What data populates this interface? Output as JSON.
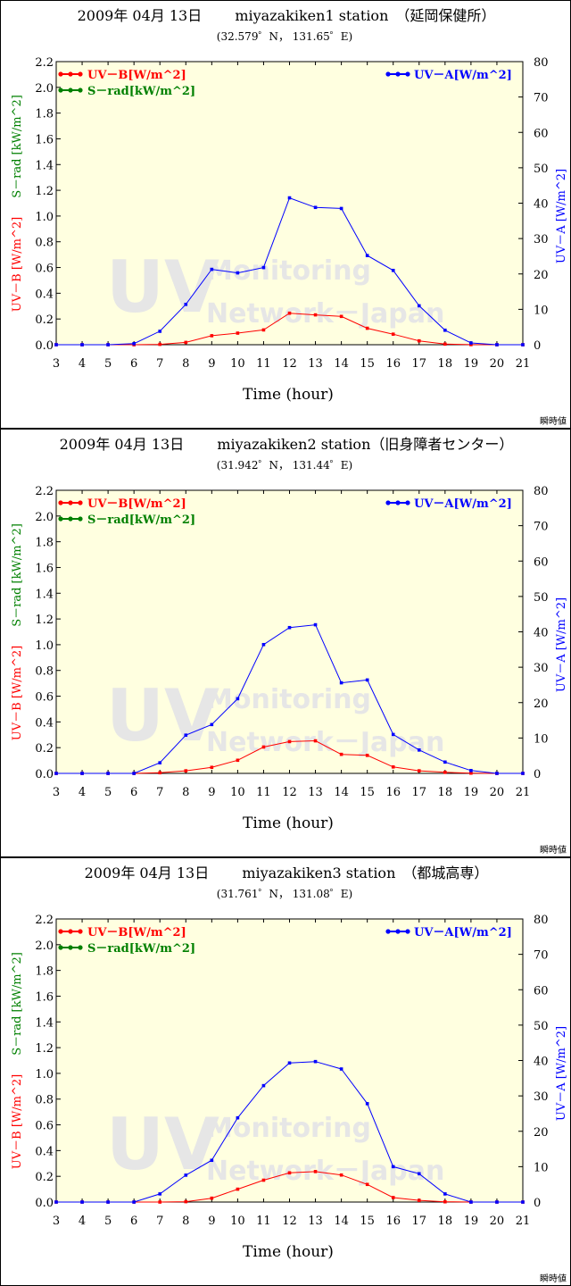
{
  "colors": {
    "uvb": "#ff0000",
    "srad": "#008000",
    "uva": "#0000ff",
    "plot_bg": "#ffffe0",
    "watermark": "#e6e6e6"
  },
  "watermark": {
    "line1": "UV",
    "line2": "Monitoring",
    "line3": "Network－Japan"
  },
  "chart_data": [
    {
      "type": "line",
      "title": "2009年 04月 13日　　 miyazakiken1 station　（延岡保健所）",
      "subtitle": "(32.579゜N，  131.65゜E)",
      "xlabel": "Time (hour)",
      "ylabel_left_1": "UV－B [W/m^2]",
      "ylabel_left_2": "S－rad [kW/m^2]",
      "ylabel_right": "UV－A [W/m^2]",
      "corner_label": "瞬時値",
      "xlim": [
        3,
        21
      ],
      "ylim_left": [
        0,
        2.2
      ],
      "ylim_right": [
        0,
        80
      ],
      "x_ticks": [
        "3",
        "4",
        "5",
        "6",
        "7",
        "8",
        "9",
        "10",
        "11",
        "12",
        "13",
        "14",
        "15",
        "16",
        "17",
        "18",
        "19",
        "20",
        "21"
      ],
      "y_ticks_left": [
        "0.0",
        "0.2",
        "0.4",
        "0.6",
        "0.8",
        "1.0",
        "1.2",
        "1.4",
        "1.6",
        "1.8",
        "2.0",
        "2.2"
      ],
      "y_ticks_right": [
        "0",
        "10",
        "20",
        "30",
        "40",
        "50",
        "60",
        "70",
        "80"
      ],
      "legend": {
        "uvb": "UV－B[W/m^2]",
        "srad": "S－rad[kW/m^2]",
        "uva": "UV－A[W/m^2]"
      },
      "x": [
        3,
        4,
        5,
        6,
        7,
        8,
        9,
        10,
        11,
        12,
        13,
        14,
        15,
        16,
        17,
        18,
        19,
        20,
        21
      ],
      "series": [
        {
          "name": "UV－B[W/m^2]",
          "axis": "left",
          "color": "#ff0000",
          "values": [
            0,
            0,
            0,
            0,
            0.003,
            0.018,
            0.07,
            0.09,
            0.115,
            0.245,
            0.232,
            0.22,
            0.128,
            0.082,
            0.03,
            0.005,
            0.001,
            0,
            0
          ]
        },
        {
          "name": "UV－A[W/m^2]",
          "axis": "right",
          "color": "#0000ff",
          "values": [
            0,
            0,
            0,
            0.3,
            3.8,
            11.4,
            21.3,
            20.3,
            21.8,
            41.5,
            38.8,
            38.5,
            25.2,
            21.0,
            11.0,
            4.1,
            0.5,
            0,
            0
          ]
        }
      ]
    },
    {
      "type": "line",
      "title": "2009年 04月 13日　　 miyazakiken2 station（旧身障者センター）",
      "subtitle": "(31.942゜N，  131.44゜E)",
      "xlabel": "Time (hour)",
      "ylabel_left_1": "UV－B [W/m^2]",
      "ylabel_left_2": "S－rad [kW/m^2]",
      "ylabel_right": "UV－A [W/m^2]",
      "corner_label": "瞬時値",
      "xlim": [
        3,
        21
      ],
      "ylim_left": [
        0,
        2.2
      ],
      "ylim_right": [
        0,
        80
      ],
      "x_ticks": [
        "3",
        "4",
        "5",
        "6",
        "7",
        "8",
        "9",
        "10",
        "11",
        "12",
        "13",
        "14",
        "15",
        "16",
        "17",
        "18",
        "19",
        "20",
        "21"
      ],
      "y_ticks_left": [
        "0.0",
        "0.2",
        "0.4",
        "0.6",
        "0.8",
        "1.0",
        "1.2",
        "1.4",
        "1.6",
        "1.8",
        "2.0",
        "2.2"
      ],
      "y_ticks_right": [
        "0",
        "10",
        "20",
        "30",
        "40",
        "50",
        "60",
        "70",
        "80"
      ],
      "legend": {
        "uvb": "UV－B[W/m^2]",
        "srad": "S－rad[kW/m^2]",
        "uva": "UV－A[W/m^2]"
      },
      "x": [
        3,
        4,
        5,
        6,
        7,
        8,
        9,
        10,
        11,
        12,
        13,
        14,
        15,
        16,
        17,
        18,
        19,
        20,
        21
      ],
      "series": [
        {
          "name": "UV－B[W/m^2]",
          "axis": "left",
          "color": "#ff0000",
          "values": [
            0,
            0,
            0,
            0,
            0.005,
            0.02,
            0.047,
            0.102,
            0.205,
            0.247,
            0.253,
            0.148,
            0.14,
            0.05,
            0.02,
            0.008,
            0.002,
            0,
            0
          ]
        },
        {
          "name": "UV－A[W/m^2]",
          "axis": "right",
          "color": "#0000ff",
          "values": [
            0,
            0,
            0,
            0,
            3.0,
            10.8,
            13.8,
            21.1,
            36.4,
            41.2,
            42.0,
            25.6,
            26.4,
            11.0,
            6.6,
            3.2,
            0.8,
            0,
            0
          ]
        }
      ]
    },
    {
      "type": "line",
      "title": "2009年 04月 13日　　 miyazakiken3 station　（都城高専）",
      "subtitle": "(31.761゜N，  131.08゜E)",
      "xlabel": "Time (hour)",
      "ylabel_left_1": "UV－B [W/m^2]",
      "ylabel_left_2": "S－rad [kW/m^2]",
      "ylabel_right": "UV－A [W/m^2]",
      "corner_label": "瞬時値",
      "xlim": [
        3,
        21
      ],
      "ylim_left": [
        0,
        2.2
      ],
      "ylim_right": [
        0,
        80
      ],
      "x_ticks": [
        "3",
        "4",
        "5",
        "6",
        "7",
        "8",
        "9",
        "10",
        "11",
        "12",
        "13",
        "14",
        "15",
        "16",
        "17",
        "18",
        "19",
        "20",
        "21"
      ],
      "y_ticks_left": [
        "0.0",
        "0.2",
        "0.4",
        "0.6",
        "0.8",
        "1.0",
        "1.2",
        "1.4",
        "1.6",
        "1.8",
        "2.0",
        "2.2"
      ],
      "y_ticks_right": [
        "0",
        "10",
        "20",
        "30",
        "40",
        "50",
        "60",
        "70",
        "80"
      ],
      "legend": {
        "uvb": "UV－B[W/m^2]",
        "srad": "S－rad[kW/m^2]",
        "uva": "UV－A[W/m^2]"
      },
      "x": [
        3,
        4,
        5,
        6,
        7,
        8,
        9,
        10,
        11,
        12,
        13,
        14,
        15,
        16,
        17,
        18,
        19,
        20,
        21
      ],
      "series": [
        {
          "name": "UV－B[W/m^2]",
          "axis": "left",
          "color": "#ff0000",
          "values": [
            0,
            0,
            0,
            0,
            0,
            0.003,
            0.03,
            0.1,
            0.17,
            0.227,
            0.237,
            0.21,
            0.137,
            0.035,
            0.013,
            0.002,
            0,
            0,
            0
          ]
        },
        {
          "name": "UV－A[W/m^2]",
          "axis": "right",
          "color": "#0000ff",
          "values": [
            0,
            0,
            0,
            0,
            2.3,
            7.6,
            11.8,
            23.8,
            32.9,
            39.3,
            39.7,
            37.6,
            27.8,
            10.0,
            8.0,
            2.3,
            0,
            0,
            0
          ]
        }
      ]
    }
  ]
}
